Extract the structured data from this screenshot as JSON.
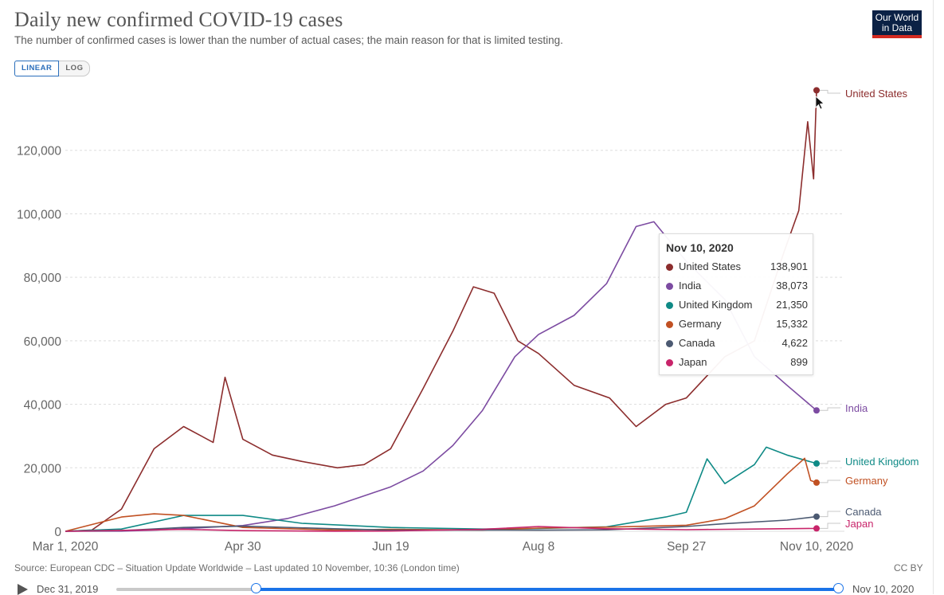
{
  "header": {
    "title": "Daily new confirmed COVID-19 cases",
    "subtitle": "The number of confirmed cases is lower than the number of actual cases; the main reason for that is limited testing.",
    "logo_line1": "Our World",
    "logo_line2": "in Data"
  },
  "scale_toggle": {
    "linear_label": "LINEAR",
    "log_label": "LOG",
    "selected": "LINEAR"
  },
  "footer": {
    "source": "Source: European CDC – Situation Update Worldwide – Last updated 10 November, 10:36 (London time)",
    "license": "CC BY"
  },
  "timeline": {
    "start_label": "Dec 31, 2019",
    "end_label": "Nov 10, 2020",
    "selected_start": "Mar 1, 2020",
    "selected_end": "Nov 10, 2020"
  },
  "tooltip": {
    "date": "Nov 10, 2020",
    "rows": [
      {
        "name": "United States",
        "value": "138,901"
      },
      {
        "name": "India",
        "value": "38,073"
      },
      {
        "name": "United Kingdom",
        "value": "21,350"
      },
      {
        "name": "Germany",
        "value": "15,332"
      },
      {
        "name": "Canada",
        "value": "4,622"
      },
      {
        "name": "Japan",
        "value": "899"
      }
    ]
  },
  "chart_data": {
    "type": "line",
    "title": "Daily new confirmed COVID-19 cases",
    "xlabel": "",
    "ylabel": "",
    "x_range": [
      "Mar 1, 2020",
      "Nov 10, 2020"
    ],
    "x_tick_labels": [
      "Mar 1, 2020",
      "Apr 30",
      "Jun 19",
      "Aug 8",
      "Sep 27",
      "Nov 10, 2020"
    ],
    "y_tick_labels": [
      "0",
      "20,000",
      "40,000",
      "60,000",
      "80,000",
      "100,000",
      "120,000"
    ],
    "y_ticks": [
      0,
      20000,
      40000,
      60000,
      80000,
      100000,
      120000
    ],
    "ylim": [
      0,
      140000
    ],
    "grid": "horizontal dashed",
    "legend": "end-of-line labels",
    "series": [
      {
        "name": "United States",
        "color": "#8c2d2d",
        "points": [
          [
            "Mar 1, 2020",
            10
          ],
          [
            "Mar 10, 2020",
            400
          ],
          [
            "Mar 20, 2020",
            7000
          ],
          [
            "Mar 31, 2020",
            26000
          ],
          [
            "Apr 10, 2020",
            33000
          ],
          [
            "Apr 20, 2020",
            28000
          ],
          [
            "Apr 24, 2020",
            48500
          ],
          [
            "Apr 30, 2020",
            29000
          ],
          [
            "May 10, 2020",
            24000
          ],
          [
            "May 20, 2020",
            22000
          ],
          [
            "Jun 1, 2020",
            20000
          ],
          [
            "Jun 10, 2020",
            21000
          ],
          [
            "Jun 19, 2020",
            26000
          ],
          [
            "Jun 30, 2020",
            45000
          ],
          [
            "Jul 10, 2020",
            63000
          ],
          [
            "Jul 17, 2020",
            77000
          ],
          [
            "Jul 24, 2020",
            75000
          ],
          [
            "Aug 1, 2020",
            60000
          ],
          [
            "Aug 8, 2020",
            56000
          ],
          [
            "Aug 20, 2020",
            46000
          ],
          [
            "Sep 1, 2020",
            42000
          ],
          [
            "Sep 10, 2020",
            33000
          ],
          [
            "Sep 20, 2020",
            40000
          ],
          [
            "Sep 27, 2020",
            42000
          ],
          [
            "Oct 10, 2020",
            55000
          ],
          [
            "Oct 20, 2020",
            60000
          ],
          [
            "Oct 30, 2020",
            88000
          ],
          [
            "Nov 4, 2020",
            101000
          ],
          [
            "Nov 7, 2020",
            129000
          ],
          [
            "Nov 9, 2020",
            111000
          ],
          [
            "Nov 10, 2020",
            138901
          ]
        ]
      },
      {
        "name": "India",
        "color": "#7c4ba1",
        "points": [
          [
            "Mar 1, 2020",
            0
          ],
          [
            "Mar 20, 2020",
            50
          ],
          [
            "Apr 1, 2020",
            400
          ],
          [
            "Apr 30, 2020",
            1800
          ],
          [
            "May 15, 2020",
            4000
          ],
          [
            "May 31, 2020",
            8000
          ],
          [
            "Jun 19, 2020",
            14000
          ],
          [
            "Jun 30, 2020",
            19000
          ],
          [
            "Jul 10, 2020",
            27000
          ],
          [
            "Jul 20, 2020",
            38000
          ],
          [
            "Jul 31, 2020",
            55000
          ],
          [
            "Aug 8, 2020",
            62000
          ],
          [
            "Aug 20, 2020",
            68000
          ],
          [
            "Aug 31, 2020",
            78000
          ],
          [
            "Sep 10, 2020",
            96000
          ],
          [
            "Sep 16, 2020",
            97500
          ],
          [
            "Sep 27, 2020",
            85000
          ],
          [
            "Oct 10, 2020",
            73000
          ],
          [
            "Oct 20, 2020",
            55000
          ],
          [
            "Oct 31, 2020",
            46000
          ],
          [
            "Nov 10, 2020",
            38073
          ]
        ]
      },
      {
        "name": "United Kingdom",
        "color": "#0f8a86",
        "points": [
          [
            "Mar 1, 2020",
            20
          ],
          [
            "Mar 20, 2020",
            700
          ],
          [
            "Apr 10, 2020",
            5000
          ],
          [
            "Apr 30, 2020",
            5000
          ],
          [
            "May 20, 2020",
            2500
          ],
          [
            "Jun 19, 2020",
            1200
          ],
          [
            "Jul 20, 2020",
            700
          ],
          [
            "Aug 8, 2020",
            900
          ],
          [
            "Aug 31, 2020",
            1400
          ],
          [
            "Sep 20, 2020",
            4500
          ],
          [
            "Sep 27, 2020",
            6000
          ],
          [
            "Oct 4, 2020",
            22800
          ],
          [
            "Oct 10, 2020",
            15000
          ],
          [
            "Oct 20, 2020",
            21000
          ],
          [
            "Oct 24, 2020",
            26500
          ],
          [
            "Oct 31, 2020",
            24000
          ],
          [
            "Nov 10, 2020",
            21350
          ]
        ]
      },
      {
        "name": "Germany",
        "color": "#c15123",
        "points": [
          [
            "Mar 1, 2020",
            10
          ],
          [
            "Mar 20, 2020",
            4500
          ],
          [
            "Mar 31, 2020",
            5500
          ],
          [
            "Apr 10, 2020",
            5000
          ],
          [
            "Apr 30, 2020",
            1200
          ],
          [
            "May 31, 2020",
            400
          ],
          [
            "Jun 19, 2020",
            600
          ],
          [
            "Jul 20, 2020",
            400
          ],
          [
            "Aug 8, 2020",
            1000
          ],
          [
            "Aug 31, 2020",
            1300
          ],
          [
            "Sep 27, 2020",
            1900
          ],
          [
            "Oct 10, 2020",
            4000
          ],
          [
            "Oct 20, 2020",
            8000
          ],
          [
            "Oct 31, 2020",
            18000
          ],
          [
            "Nov 6, 2020",
            23000
          ],
          [
            "Nov 8, 2020",
            16000
          ],
          [
            "Nov 10, 2020",
            15332
          ]
        ]
      },
      {
        "name": "Canada",
        "color": "#4c5a72",
        "points": [
          [
            "Mar 1, 2020",
            0
          ],
          [
            "Mar 20, 2020",
            200
          ],
          [
            "Apr 10, 2020",
            1200
          ],
          [
            "Apr 30, 2020",
            1600
          ],
          [
            "May 31, 2020",
            800
          ],
          [
            "Jun 19, 2020",
            350
          ],
          [
            "Jul 20, 2020",
            400
          ],
          [
            "Aug 8, 2020",
            350
          ],
          [
            "Aug 31, 2020",
            450
          ],
          [
            "Sep 27, 2020",
            1500
          ],
          [
            "Oct 10, 2020",
            2400
          ],
          [
            "Oct 31, 2020",
            3500
          ],
          [
            "Nov 10, 2020",
            4622
          ]
        ]
      },
      {
        "name": "Japan",
        "color": "#c8246a",
        "points": [
          [
            "Mar 1, 2020",
            10
          ],
          [
            "Apr 10, 2020",
            600
          ],
          [
            "Apr 30, 2020",
            200
          ],
          [
            "May 31, 2020",
            30
          ],
          [
            "Jun 19, 2020",
            70
          ],
          [
            "Jul 20, 2020",
            600
          ],
          [
            "Aug 8, 2020",
            1500
          ],
          [
            "Aug 31, 2020",
            800
          ],
          [
            "Sep 27, 2020",
            500
          ],
          [
            "Oct 20, 2020",
            700
          ],
          [
            "Nov 10, 2020",
            899
          ]
        ]
      }
    ]
  }
}
